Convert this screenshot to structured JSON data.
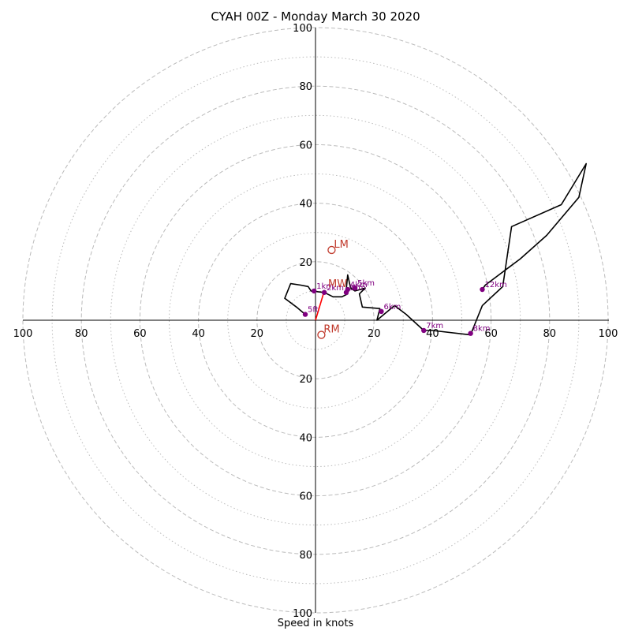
{
  "chart_data": {
    "type": "hodograph",
    "title": "CYAH 00Z - Monday March 30 2020",
    "xlabel": "Speed in knots",
    "range": [
      -100,
      100
    ],
    "grid": true,
    "rings_major": [
      20,
      40,
      60,
      80,
      100
    ],
    "rings_minor": [
      10,
      30,
      50,
      70,
      90
    ],
    "tick_labels": [
      "100",
      "80",
      "60",
      "40",
      "20",
      "20",
      "40",
      "60",
      "80",
      "100"
    ],
    "tick_values": [
      -100,
      -80,
      -60,
      -40,
      -20,
      20,
      40,
      60,
      80,
      100
    ],
    "colors": {
      "ring": "#bbbbbb",
      "trace": "#000000",
      "height_marker": "#800080",
      "storm_motion": "#c0392b",
      "shear_vector": "#ff0000",
      "axis": "#000000"
    },
    "hodograph_trace": [
      [
        -3.5,
        2
      ],
      [
        -6.5,
        4.5
      ],
      [
        -10.5,
        7.5
      ],
      [
        -8.5,
        12.5
      ],
      [
        -5,
        12
      ],
      [
        -2.5,
        11.5
      ],
      [
        -1.5,
        10
      ],
      [
        3,
        9.5
      ],
      [
        6,
        8
      ],
      [
        9,
        8
      ],
      [
        11,
        9
      ],
      [
        10.5,
        10.5
      ],
      [
        11,
        15.5
      ],
      [
        12,
        11
      ],
      [
        13.5,
        10
      ],
      [
        17,
        11
      ],
      [
        15,
        9
      ],
      [
        16,
        4.5
      ],
      [
        22,
        4
      ],
      [
        21,
        0
      ],
      [
        27,
        5
      ],
      [
        31,
        2
      ],
      [
        37,
        -3.5
      ],
      [
        40,
        -3.5
      ],
      [
        53,
        -5
      ],
      [
        55,
        0
      ],
      [
        57,
        5
      ],
      [
        64,
        11.5
      ],
      [
        67,
        32
      ],
      [
        84,
        39.5
      ],
      [
        92.5,
        53.5
      ],
      [
        90,
        42
      ],
      [
        79,
        29
      ],
      [
        70,
        21
      ],
      [
        66,
        18
      ],
      [
        58,
        12
      ],
      [
        57,
        10.5
      ]
    ],
    "height_markers": [
      {
        "label": "5ft",
        "u": -3.5,
        "v": 2
      },
      {
        "label": "1km",
        "u": -0.5,
        "v": 10
      },
      {
        "label": "2km",
        "u": 3,
        "v": 9.5
      },
      {
        "label": "3km",
        "u": 10.5,
        "v": 9.5
      },
      {
        "label": "4km",
        "u": 11,
        "v": 10.5
      },
      {
        "label": "5km",
        "u": 13.5,
        "v": 11
      },
      {
        "label": "6km",
        "u": 22.5,
        "v": 3
      },
      {
        "label": "7km",
        "u": 37,
        "v": -3.5
      },
      {
        "label": "8km",
        "u": 53,
        "v": -4.5
      },
      {
        "label": "12km",
        "u": 57,
        "v": 10.5
      }
    ],
    "storm_motions": [
      {
        "label": "LM",
        "u": 5.5,
        "v": 24
      },
      {
        "label": "RM",
        "u": 2,
        "v": -5
      },
      {
        "label": "MW",
        "u": 3.5,
        "v": 10.5
      }
    ],
    "shear_vector": {
      "from": [
        0,
        0
      ],
      "to": [
        3,
        10
      ]
    }
  }
}
